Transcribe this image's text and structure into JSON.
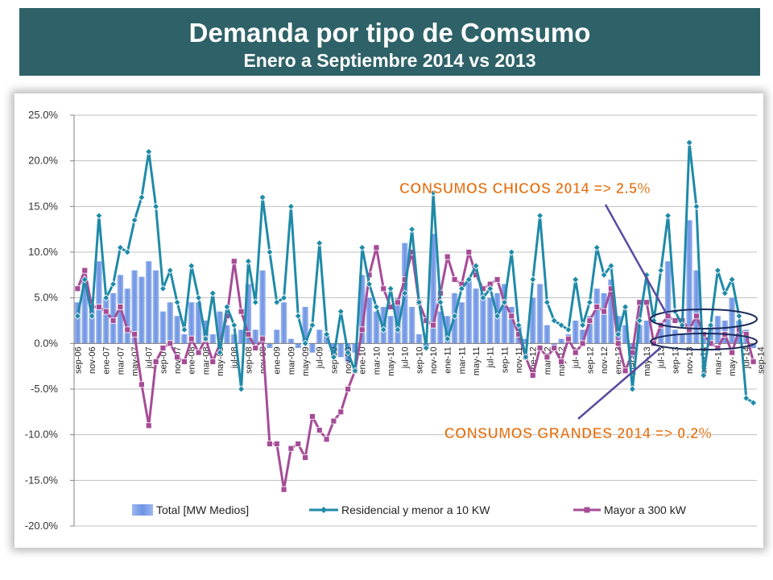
{
  "header": {
    "title": "Demanda por tipo de Comsumo",
    "subtitle": "Enero a Septiembre 2014 vs 2013"
  },
  "colors": {
    "header_bg": "#2e6268",
    "bar": "#6d93e2",
    "residencial": "#1f8aa8",
    "mayor": "#a64c97",
    "annotation": "#e46c0a"
  },
  "annotations": {
    "chicos": "CONSUMOS CHICOS 2014 => 2.5%",
    "grandes": "CONSUMOS GRANDES 2014 => 0.2%"
  },
  "chart_data": {
    "type": "bar",
    "title": "",
    "xlabel": "",
    "ylabel": "",
    "ylim": [
      -20,
      25
    ],
    "y_ticks": [
      "25.0%",
      "20.0%",
      "15.0%",
      "10.0%",
      "5.0%",
      "0.0%",
      "-5.0%",
      "-10.0%",
      "-15.0%",
      "-20.0%"
    ],
    "tick_labels": [
      "sep-06",
      "nov-06",
      "ene-07",
      "mar-07",
      "may-07",
      "jul-07",
      "sep-07",
      "nov-07",
      "ene-08",
      "mar-08",
      "may-08",
      "jul-08",
      "sep-08",
      "nov-08",
      "ene-09",
      "mar-09",
      "may-09",
      "jul-09",
      "sep-09",
      "nov-09",
      "ene-10",
      "mar-10",
      "may-10",
      "jul-10",
      "sep-10",
      "nov-10",
      "ene-11",
      "mar-11",
      "may-11",
      "jul-11",
      "sep-11",
      "nov-11",
      "ene-12",
      "mar-12",
      "may-12",
      "jul-12",
      "sep-12",
      "nov-12",
      "ene-13",
      "mar-13",
      "may-13",
      "jul-13",
      "sep-13",
      "nov-13",
      "ene-14",
      "mar-14",
      "may-14",
      "jul-14",
      "sep-14"
    ],
    "legend_position": "bottom",
    "series": [
      {
        "name": "Total [MW Medios]",
        "kind": "bar",
        "values": [
          4.5,
          7.0,
          4.0,
          9.0,
          5.0,
          5.5,
          7.5,
          6.0,
          8.0,
          7.3,
          9.0,
          8.0,
          3.5,
          4.5,
          3.0,
          1.0,
          4.5,
          4.5,
          2.5,
          1.0,
          3.5,
          2.0,
          1.0,
          1.5,
          6.5,
          1.5,
          8.0,
          -0.5,
          1.5,
          4.5,
          0.5,
          -0.5,
          4.0,
          -1.0,
          1.5,
          1.0,
          -1.0,
          -1.5,
          -2.0,
          -1.0,
          7.5,
          5.0,
          3.5,
          4.0,
          3.0,
          5.0,
          11.0,
          4.0,
          1.0,
          -0.5,
          12.0,
          3.5,
          3.0,
          5.5,
          4.5,
          7.0,
          6.0,
          5.5,
          5.0,
          5.5,
          6.5,
          4.0,
          2.0,
          0.5,
          5.0,
          6.5,
          2.0,
          -0.5,
          0.5,
          1.0,
          2.5,
          1.5,
          3.0,
          6.0,
          5.5,
          7.0,
          3.0,
          2.0,
          -1.5,
          2.0,
          2.5,
          0.5,
          2.0,
          9.0,
          1.5,
          1.0,
          13.5,
          8.0,
          1.0,
          2.0,
          3.0,
          2.5,
          5.0,
          2.5,
          1.5,
          -0.5
        ]
      },
      {
        "name": "Residencial y menor a 10 KW",
        "kind": "line",
        "values": [
          3.0,
          7.0,
          3.0,
          14.0,
          5.0,
          6.5,
          10.5,
          10.0,
          13.5,
          16.0,
          21.0,
          15.0,
          6.0,
          8.0,
          4.5,
          1.5,
          8.5,
          5.0,
          0.5,
          5.5,
          -1.0,
          4.0,
          2.0,
          -5.0,
          9.0,
          4.5,
          16.0,
          10.0,
          4.5,
          5.0,
          15.0,
          3.0,
          0.0,
          2.0,
          11.0,
          1.0,
          -1.5,
          3.5,
          -1.0,
          -3.0,
          10.5,
          6.5,
          4.0,
          1.5,
          6.0,
          1.5,
          5.5,
          12.5,
          4.5,
          -0.5,
          16.5,
          4.5,
          0.5,
          3.0,
          6.0,
          7.0,
          8.5,
          5.0,
          6.0,
          3.0,
          4.5,
          10.0,
          2.0,
          -1.5,
          7.0,
          14.0,
          4.5,
          2.5,
          2.0,
          1.5,
          7.0,
          2.0,
          4.5,
          10.5,
          7.5,
          8.5,
          1.0,
          4.0,
          -5.0,
          2.5,
          7.5,
          2.5,
          8.0,
          14.0,
          3.5,
          2.0,
          22.0,
          15.0,
          -3.5,
          2.0,
          8.0,
          5.5,
          7.0,
          3.0,
          -6.0,
          -6.5
        ]
      },
      {
        "name": "Mayor a 300 kW",
        "kind": "line",
        "values": [
          6.0,
          8.0,
          4.0,
          4.0,
          3.5,
          2.5,
          4.0,
          1.5,
          1.0,
          -4.5,
          -9.0,
          -2.0,
          -0.5,
          0.0,
          -1.5,
          -2.0,
          0.5,
          -1.0,
          0.5,
          -2.0,
          0.0,
          3.0,
          9.0,
          3.5,
          1.0,
          -0.5,
          0.5,
          -11.0,
          -11.0,
          -16.0,
          -11.5,
          -11.0,
          -12.5,
          -8.0,
          -9.5,
          -10.5,
          -8.5,
          -7.5,
          -5.0,
          -3.0,
          1.5,
          7.5,
          10.5,
          6.0,
          4.0,
          4.5,
          7.0,
          10.0,
          4.5,
          2.5,
          2.0,
          5.5,
          9.5,
          7.0,
          6.5,
          10.0,
          7.5,
          6.0,
          6.5,
          7.0,
          4.5,
          3.0,
          1.0,
          -1.5,
          -3.5,
          -0.5,
          -1.5,
          -0.5,
          -2.0,
          0.5,
          -1.0,
          0.0,
          2.5,
          4.0,
          3.5,
          6.0,
          0.0,
          -3.0,
          -1.0,
          4.5,
          4.5,
          0.0,
          2.0,
          3.0,
          2.5,
          2.5,
          1.5,
          3.0,
          1.0,
          0.0,
          -0.5,
          1.0,
          -1.0,
          1.5,
          1.0,
          -2.0
        ]
      }
    ]
  }
}
